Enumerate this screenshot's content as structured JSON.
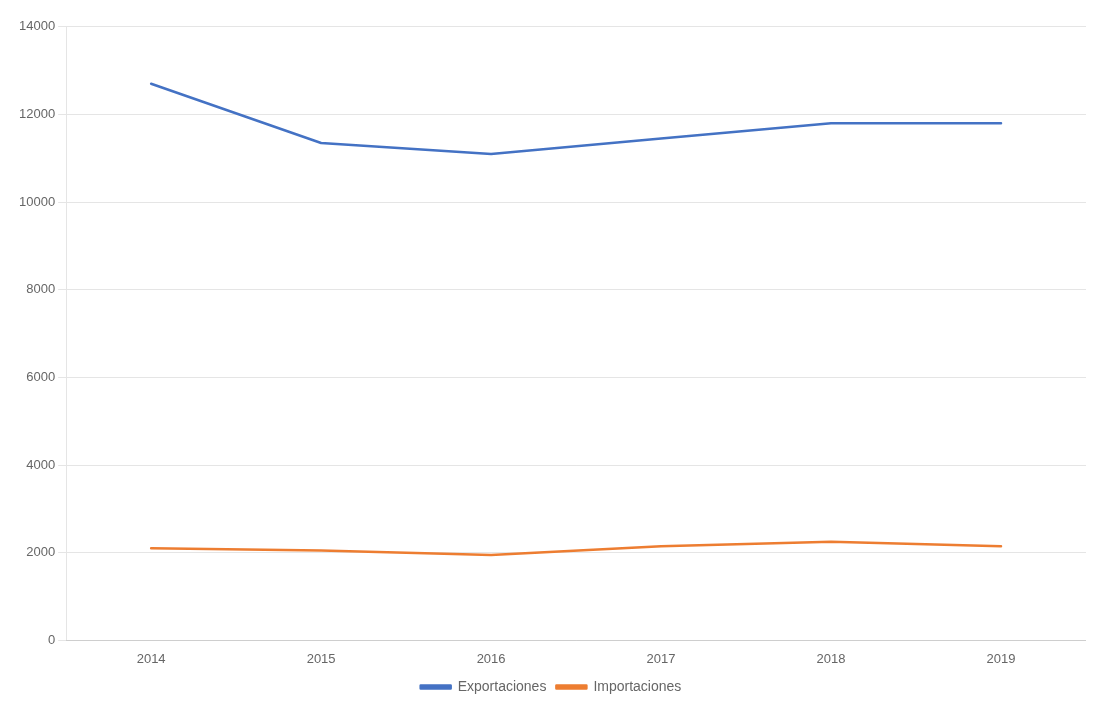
{
  "chart_data": {
    "type": "line",
    "x": [
      2014,
      2015,
      2016,
      2017,
      2018,
      2019
    ],
    "series": [
      {
        "name": "Exportaciones",
        "color": "#4472C4",
        "values": [
          12700,
          11350,
          11100,
          11450,
          11800,
          11800
        ]
      },
      {
        "name": "Importaciones",
        "color": "#ED7D31",
        "values": [
          2100,
          2050,
          1950,
          2150,
          2250,
          2150
        ]
      }
    ],
    "xlim": [
      2013.5,
      2019.5
    ],
    "xticks": [
      2014,
      2015,
      2016,
      2017,
      2018,
      2019
    ],
    "ylim": [
      0,
      14000
    ],
    "yticks": [
      0,
      2000,
      4000,
      6000,
      8000,
      10000,
      12000,
      14000
    ],
    "grid": "y",
    "legend": "bottom"
  }
}
